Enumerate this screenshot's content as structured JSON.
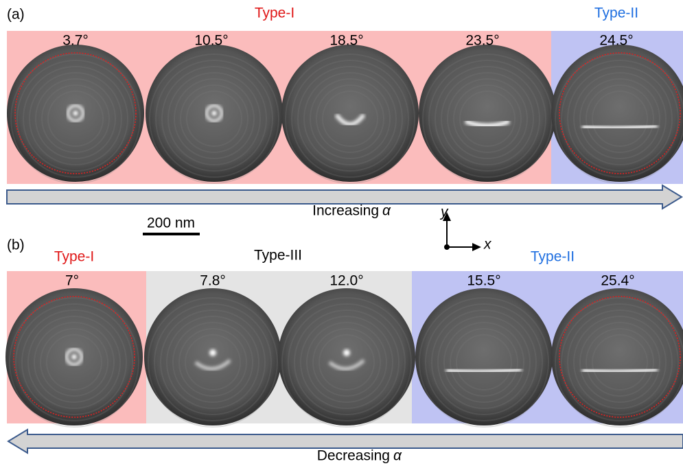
{
  "panels": [
    {
      "label": "(a)",
      "groups": [
        "Type-I",
        "Type-II"
      ],
      "angles": [
        "3.7°",
        "10.5°",
        "18.5°",
        "23.5°",
        "24.5°"
      ],
      "arrow": {
        "text": "Increasing",
        "symbol": "α"
      }
    },
    {
      "label": "(b)",
      "groups": [
        "Type-I",
        "Type-III",
        "Type-II"
      ],
      "angles": [
        "7°",
        "7.8°",
        "12.0°",
        "15.5°",
        "25.4°"
      ],
      "arrow": {
        "text": "Decreasing",
        "symbol": "α"
      }
    }
  ],
  "scale_bar": "200 nm",
  "axes": {
    "x": "x",
    "y": "y"
  }
}
